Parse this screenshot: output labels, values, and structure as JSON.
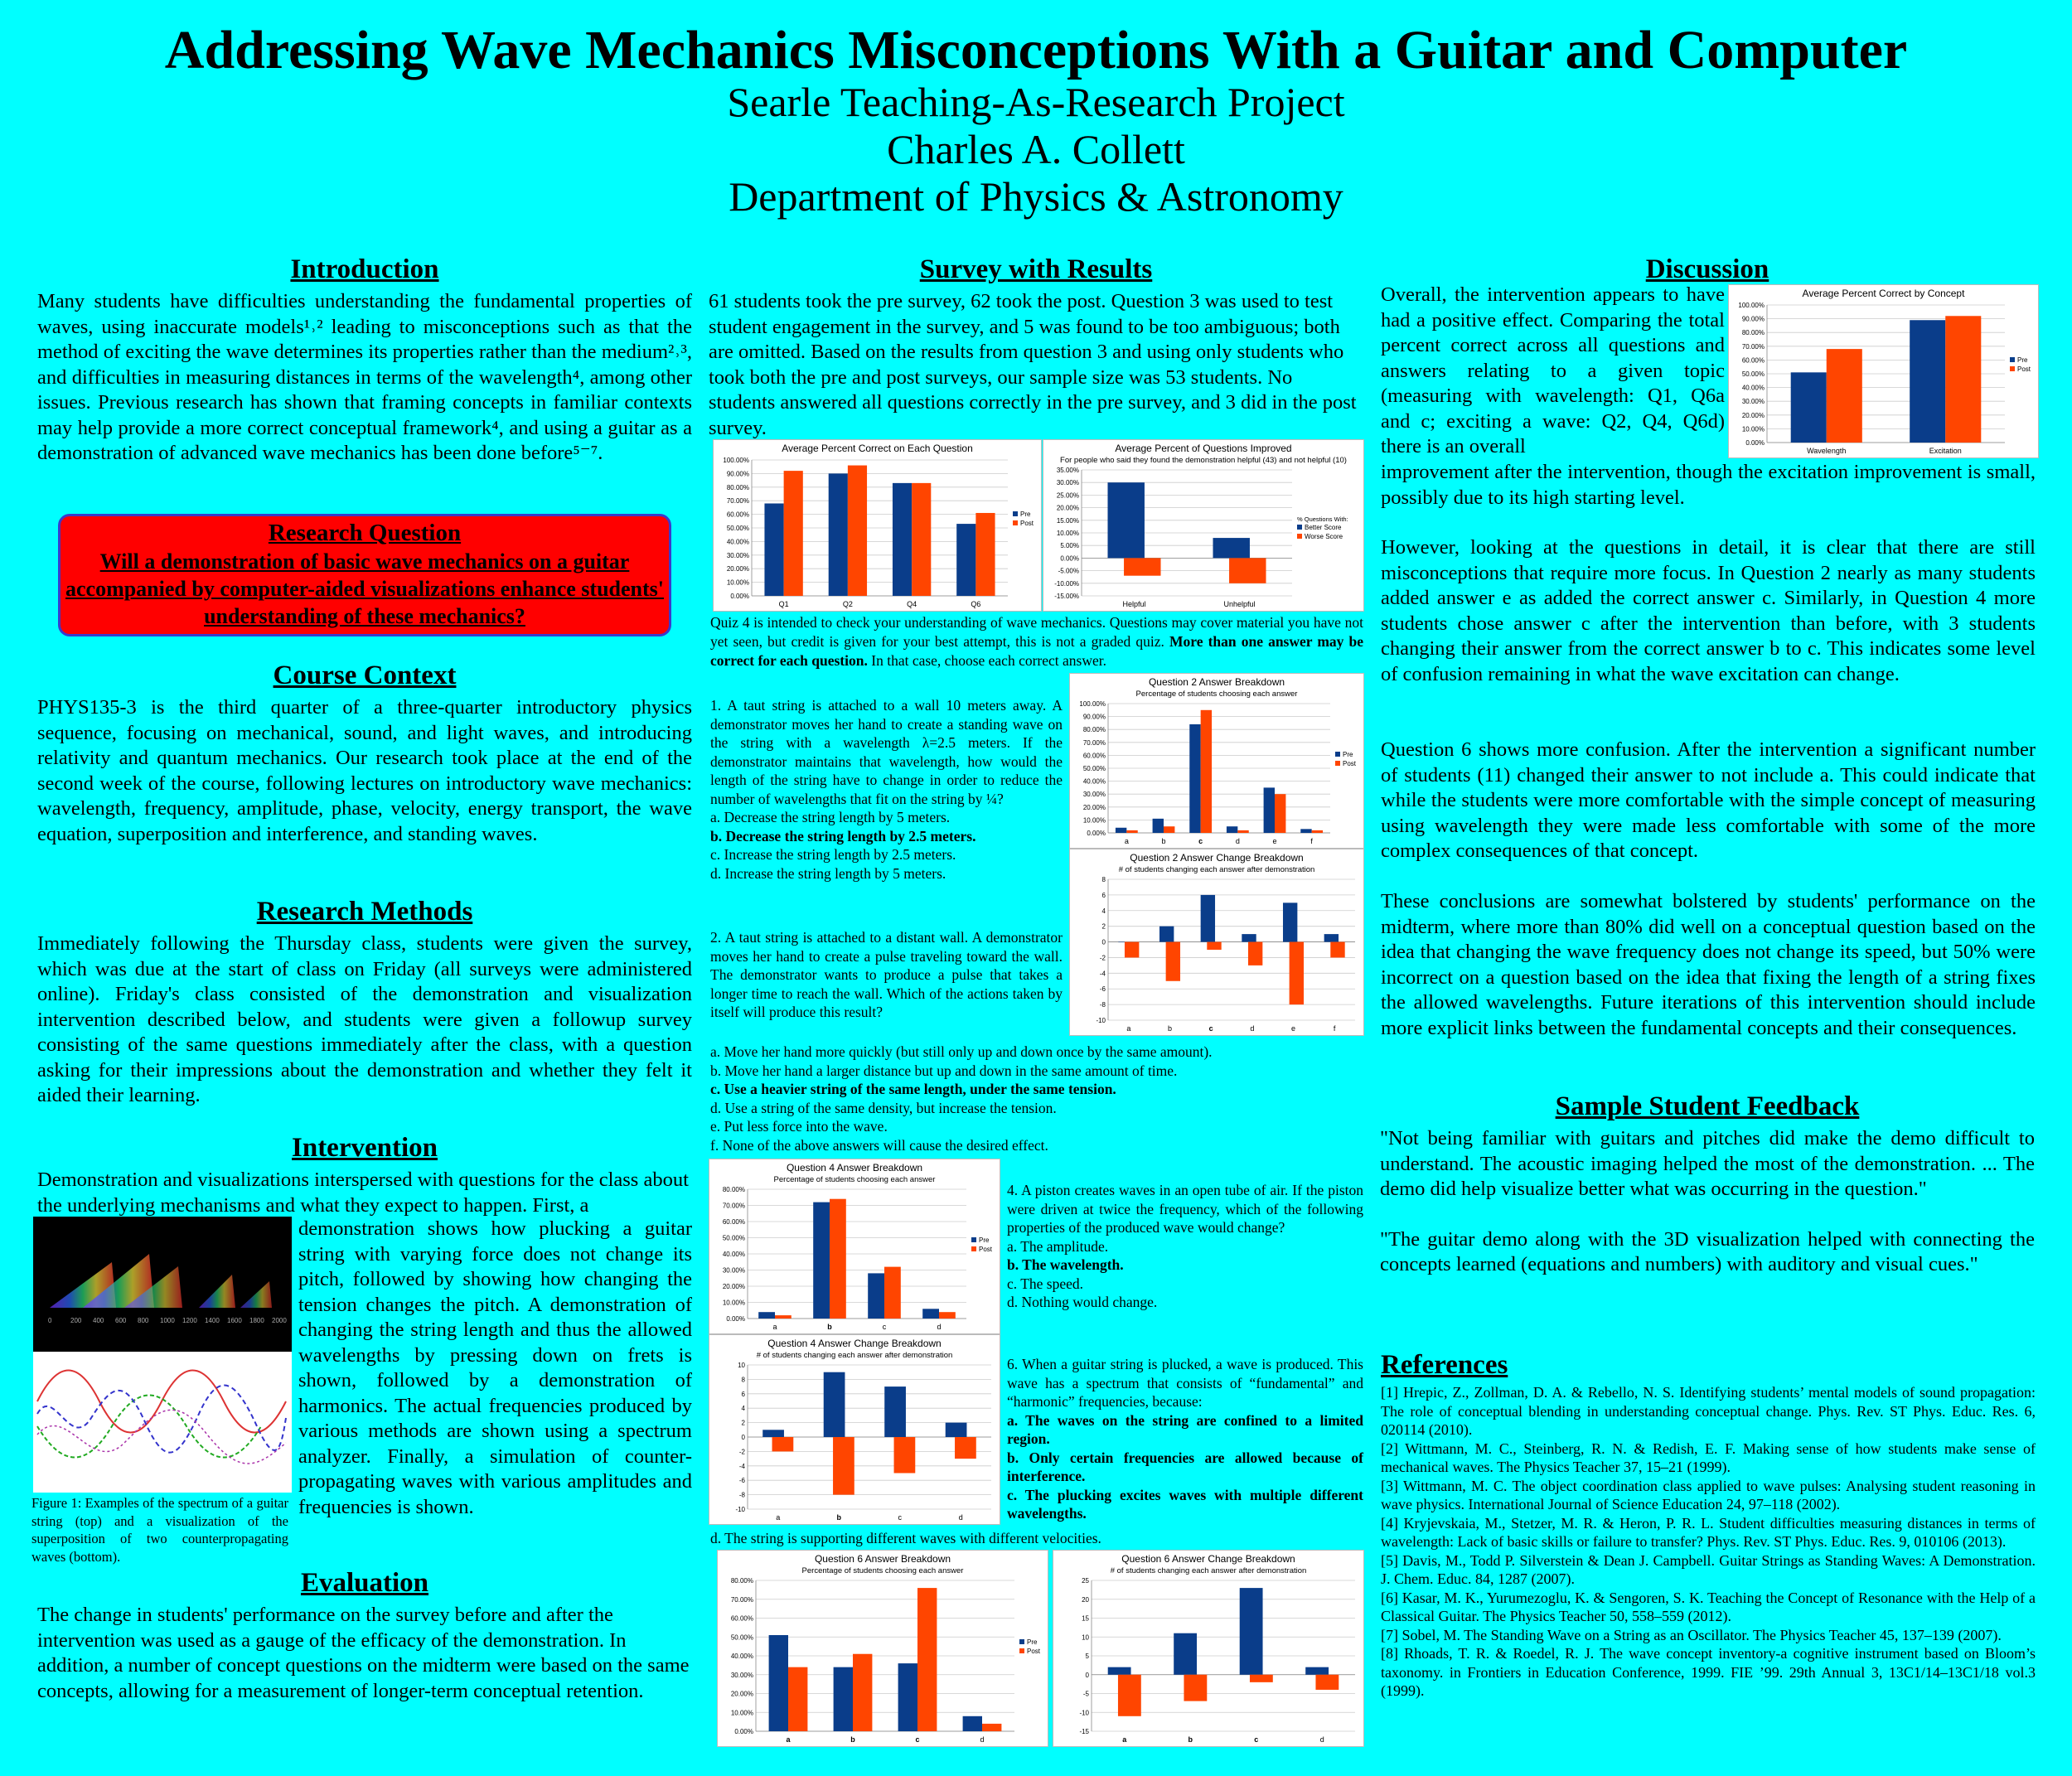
{
  "header": {
    "title": "Addressing Wave Mechanics Misconceptions With a Guitar and Computer",
    "lines": [
      "Searle Teaching-As-Research Project",
      "Charles A. Collett",
      "Department of Physics & Astronomy"
    ]
  },
  "intro": {
    "heading": "Introduction",
    "text": "Many students have difficulties understanding the fundamental properties of waves, using inaccurate models¹˒² leading to misconceptions such as that the method of exciting the wave determines its properties rather than the medium²˒³, and difficulties in measuring distances in terms of the wavelength⁴, among other issues. Previous research has shown that framing concepts in familiar contexts may help provide a more correct conceptual framework⁴, and using a guitar as a demonstration of advanced wave mechanics has been done before⁵⁻⁷."
  },
  "research_question": {
    "heading": "Research Question",
    "text": "Will a demonstration of basic wave mechanics on a guitar accompanied by computer-aided visualizations enhance students' understanding of these mechanics?"
  },
  "course_context": {
    "heading": "Course Context",
    "text": "PHYS135-3 is the third quarter of a three-quarter introductory physics sequence, focusing on mechanical, sound, and light waves, and introducing relativity and quantum mechanics. Our research took place at the end of the second week of the course, following lectures on introductory wave mechanics: wavelength, frequency, amplitude, phase, velocity, energy transport, the wave equation, superposition and interference, and standing waves."
  },
  "methods": {
    "heading": "Research Methods",
    "text": "Immediately following the Thursday class, students were given the survey, which was due at the start of class on Friday (all surveys were administered online). Friday's class consisted of the demonstration and visualization intervention described below, and students were given a followup survey consisting of the same questions immediately after the class, with a question asking for their impressions about the demonstration and whether they felt it aided their learning."
  },
  "intervention": {
    "heading": "Intervention",
    "text_top": "Demonstration and visualizations interspersed with questions for the class about the underlying mechanisms and what they expect to happen. First, a",
    "text_side": "demonstration shows how plucking a guitar string with varying force does not change its pitch, followed by showing how changing the tension changes the pitch. A demonstration of changing the string length and thus the allowed wavelengths by pressing down on frets is shown, followed by a demonstration of harmonics. The actual frequencies produced by various methods are shown using a spectrum analyzer. Finally, a simulation of counter-propagating waves with various amplitudes and frequencies is shown.",
    "figure_caption": "Figure 1: Examples of the spectrum of a guitar string (top) and a visualization of the superposition of two counterpropagating waves (bottom).",
    "spectrum_ticks": [
      "0",
      "200",
      "400",
      "600",
      "800",
      "1000",
      "1200",
      "1400",
      "1600",
      "1800",
      "2000"
    ]
  },
  "evaluation": {
    "heading": "Evaluation",
    "text": "The change in students' performance on the survey before and after the intervention was used as a gauge of the efficacy of the demonstration. In addition, a number of concept questions on the midterm were based on the same concepts, allowing for a measurement of longer-term conceptual retention."
  },
  "survey": {
    "heading": "Survey with Results",
    "text": "61 students took the pre survey, 62 took the post. Question 3 was used to test student engagement in the survey, and 5 was found to be too ambiguous; both are omitted. Based on the results from question 3 and using only students who took both the pre and post surveys, our sample size was 53 students. No students answered all questions correctly in the pre survey, and 3 did in the post survey.",
    "quiz_intro_normal": "Quiz 4 is intended to check your understanding of wave mechanics. Questions may cover material you have not yet seen, but credit is given for your best attempt, this is not a graded quiz.",
    "quiz_intro_bold": "More than one answer may be correct for each question.",
    "quiz_intro_end": "In that case, choose each correct answer.",
    "q1": {
      "stem": "1. A taut string is attached to a wall 10 meters away. A demonstrator moves her hand to create a standing wave on the string with a wavelength λ=2.5 meters. If the demonstrator maintains that wavelength, how would the length of the string have to change in order to reduce the number of wavelengths that fit on the string by ¼?",
      "options": [
        "a. Decrease the string length by 5 meters.",
        "b. Decrease the string length by 2.5 meters.",
        "c. Increase the string length by 2.5 meters.",
        "d. Increase the string length by 5 meters."
      ],
      "correct": [
        1
      ]
    },
    "q2": {
      "stem": "2. A taut string is attached to a distant wall. A demonstrator moves her hand to create a pulse traveling toward the wall. The demonstrator wants to produce a pulse that takes a longer time to reach the wall. Which of the actions taken by itself will produce this result?",
      "options": [
        "a. Move her hand more quickly (but still only up and down once by the same amount).",
        "b. Move her hand a larger distance but up and down in the same amount of time.",
        "c. Use a heavier string of the same length, under the same tension.",
        "d. Use a string of the same density, but increase the tension.",
        "e. Put less force into the wave.",
        "f. None of the above answers will cause the desired effect."
      ],
      "correct": [
        2
      ]
    },
    "q4": {
      "stem": "4. A piston creates waves in an open tube of air. If the piston were driven at twice the frequency, which of the following properties of the produced wave would change?",
      "options": [
        "a. The amplitude.",
        "b. The wavelength.",
        "c. The speed.",
        "d. Nothing would change."
      ],
      "correct": [
        1
      ]
    },
    "q6": {
      "stem": "6. When a guitar string is plucked, a wave is produced. This wave has a spectrum that consists of “fundamental” and “harmonic” frequencies, because:",
      "options": [
        "a. The waves on the string are confined to a limited region.",
        "b. Only certain frequencies are allowed because of interference.",
        "c. The plucking excites waves with multiple different wavelengths."
      ],
      "option_d": "d. The string is supporting different waves with different velocities.",
      "correct": [
        0,
        1,
        2
      ]
    }
  },
  "discussion": {
    "heading": "Discussion",
    "p1_side": "Overall, the intervention appears to have had a positive effect. Comparing the total percent correct across all questions and answers relating to a given topic (measuring with wavelength: Q1, Q6a and c; exciting a wave: Q2, Q4, Q6d) there is an overall",
    "p1_full": "improvement after the intervention, though the excitation improvement is small, possibly due to its high starting level.",
    "p2": "However, looking at the questions in detail, it is clear that there are still misconceptions that require more focus. In Question 2 nearly as many students added answer e as added the correct answer c. Similarly, in Question 4 more students chose answer c after the intervention than before, with 3 students changing their answer from the correct answer b to c. This indicates some level of confusion remaining in what the wave excitation can change.",
    "p3": "Question 6 shows more confusion. After the intervention a significant number of students (11) changed their answer to not include a. This could indicate that while the students were more comfortable with the simple concept of measuring using wavelength they were made less comfortable with some of the more complex consequences of that concept.",
    "p4": "These conclusions are somewhat bolstered by students' performance on the midterm, where more than 80% did well on a conceptual question based on the idea that changing the wave frequency does not change its speed, but 50% were incorrect on a question based on the idea that fixing the length of a string fixes the allowed wavelengths. Future iterations of this intervention should include more explicit links between the fundamental concepts and their consequences."
  },
  "feedback": {
    "heading": "Sample Student Feedback",
    "quotes": [
      "\"Not being familiar with guitars and pitches did make the demo difficult to understand. The acoustic imaging helped the most of the demonstration. ... The demo did help visualize better what was occurring in the question.\"",
      "\"The guitar demo along with the 3D visualization helped with connecting the concepts learned (equations and numbers) with auditory and visual cues.\""
    ]
  },
  "references": {
    "heading": "References",
    "items": [
      "[1] Hrepic, Z., Zollman, D. A. & Rebello, N. S. Identifying students’ mental models of sound propagation: The role of conceptual blending in understanding conceptual change. Phys. Rev. ST Phys. Educ. Res. 6, 020114 (2010).",
      "[2] Wittmann, M. C., Steinberg, R. N. & Redish, E. F. Making sense of how students make sense of mechanical waves. The Physics Teacher 37, 15–21 (1999).",
      "[3] Wittmann, M. C. The object coordination class applied to wave pulses: Analysing student reasoning in wave physics. International Journal of Science Education 24, 97–118 (2002).",
      "[4] Kryjevskaia, M., Stetzer, M. R. & Heron, P. R. L. Student difficulties measuring distances in terms of wavelength: Lack of basic skills or failure to transfer? Phys. Rev. ST Phys. Educ. Res. 9, 010106 (2013).",
      "[5] Davis, M., Todd P. Silverstein & Dean J. Campbell. Guitar Strings as Standing Waves: A Demonstration. J. Chem. Educ. 84, 1287 (2007).",
      "[6] Kasar, M. K., Yurumezoglu, K. & Sengoren, S. K. Teaching the Concept of Resonance with the Help of a Classical Guitar. The Physics Teacher 50, 558–559 (2012).",
      "[7] Sobel, M. The Standing Wave on a String as an Oscillator. The Physics Teacher 45, 137–139 (2007).",
      "[8] Rhoads, T. R. & Roedel, R. J. The wave concept inventory-a cognitive instrument based on Bloom’s taxonomy. in Frontiers in Education Conference, 1999. FIE ’99. 29th Annual 3, 13C1/14–13C1/18 vol.3 (1999)."
    ]
  },
  "colors": {
    "background": "#00ffff",
    "pre": "#0a3d8a",
    "post": "#ff4500",
    "box": "#ff0000"
  },
  "chart_data": [
    {
      "id": "avg_correct",
      "type": "bar",
      "title": "Average Percent Correct on Each Question",
      "categories": [
        "Q1",
        "Q2",
        "Q4",
        "Q6"
      ],
      "series": [
        {
          "name": "Pre",
          "values": [
            68,
            90,
            83,
            53
          ]
        },
        {
          "name": "Post",
          "values": [
            92,
            96,
            83,
            61
          ]
        }
      ],
      "ylim": [
        0,
        100
      ],
      "yticks": [
        "0.00%",
        "10.00%",
        "20.00%",
        "30.00%",
        "40.00%",
        "50.00%",
        "60.00%",
        "70.00%",
        "80.00%",
        "90.00%",
        "100.00%"
      ],
      "legend": "right",
      "grid": true
    },
    {
      "id": "avg_improved",
      "type": "bar",
      "title": "Average Percent of Questions Improved",
      "subtitle": "For people who said they found the demonstration helpful (43) and not helpful (10)",
      "categories": [
        "Helpful",
        "Unhelpful"
      ],
      "series": [
        {
          "name": "Better Score",
          "values": [
            30,
            8
          ]
        },
        {
          "name": "Worse Score",
          "values": [
            -7,
            -10
          ]
        }
      ],
      "legend_title": "% Questions With:",
      "ylim": [
        -15,
        35
      ],
      "yticks": [
        "-15.00%",
        "-10.00%",
        "-5.00%",
        "0.00%",
        "5.00%",
        "10.00%",
        "15.00%",
        "20.00%",
        "25.00%",
        "30.00%",
        "35.00%"
      ],
      "legend": "right",
      "grid": true
    },
    {
      "id": "q2_breakdown",
      "type": "bar",
      "title": "Question 2 Answer Breakdown",
      "subtitle": "Percentage of students choosing each answer",
      "categories": [
        "a",
        "b",
        "c",
        "d",
        "e",
        "f"
      ],
      "bold_categories": [
        "c"
      ],
      "series": [
        {
          "name": "Pre",
          "values": [
            4,
            11,
            84,
            5,
            35,
            3
          ]
        },
        {
          "name": "Post",
          "values": [
            2,
            5,
            95,
            2,
            30,
            2
          ]
        }
      ],
      "ylim": [
        0,
        100
      ],
      "yticks": [
        "0.00%",
        "10.00%",
        "20.00%",
        "30.00%",
        "40.00%",
        "50.00%",
        "60.00%",
        "70.00%",
        "80.00%",
        "90.00%",
        "100.00%"
      ],
      "legend": "right",
      "grid": true
    },
    {
      "id": "q2_change",
      "type": "bar",
      "title": "Question 2 Answer Change Breakdown",
      "subtitle": "# of students changing each answer after demonstration",
      "categories": [
        "a",
        "b",
        "c",
        "d",
        "e",
        "f"
      ],
      "bold_categories": [
        "c"
      ],
      "series": [
        {
          "values": [
            0,
            2,
            6,
            1,
            5,
            1
          ]
        },
        {
          "values": [
            -2,
            -5,
            -1,
            -3,
            -8,
            -2
          ]
        }
      ],
      "ylim": [
        -10,
        8
      ],
      "yticks": [
        "-10",
        "-8",
        "-6",
        "-4",
        "-2",
        "0",
        "2",
        "4",
        "6",
        "8"
      ],
      "grid": true
    },
    {
      "id": "q4_breakdown",
      "type": "bar",
      "title": "Question 4 Answer Breakdown",
      "subtitle": "Percentage of students choosing each answer",
      "categories": [
        "a",
        "b",
        "c",
        "d"
      ],
      "bold_categories": [
        "b"
      ],
      "series": [
        {
          "name": "Pre",
          "values": [
            4,
            72,
            28,
            6
          ]
        },
        {
          "name": "Post",
          "values": [
            2,
            74,
            32,
            4
          ]
        }
      ],
      "ylim": [
        0,
        80
      ],
      "yticks": [
        "0.00%",
        "10.00%",
        "20.00%",
        "30.00%",
        "40.00%",
        "50.00%",
        "60.00%",
        "70.00%",
        "80.00%"
      ],
      "legend": "right",
      "grid": true
    },
    {
      "id": "q4_change",
      "type": "bar",
      "title": "Question 4 Answer Change Breakdown",
      "subtitle": "# of students changing each answer after demonstration",
      "categories": [
        "a",
        "b",
        "c",
        "d"
      ],
      "bold_categories": [
        "b"
      ],
      "series": [
        {
          "values": [
            1,
            9,
            7,
            2
          ]
        },
        {
          "values": [
            -2,
            -8,
            -5,
            -3
          ]
        }
      ],
      "ylim": [
        -10,
        10
      ],
      "yticks": [
        "-10",
        "-8",
        "-6",
        "-4",
        "-2",
        "0",
        "2",
        "4",
        "6",
        "8",
        "10"
      ],
      "grid": true
    },
    {
      "id": "q6_breakdown",
      "type": "bar",
      "title": "Question 6 Answer Breakdown",
      "subtitle": "Percentage of students choosing each answer",
      "categories": [
        "a",
        "b",
        "c",
        "d"
      ],
      "bold_categories": [
        "a",
        "b",
        "c"
      ],
      "series": [
        {
          "name": "Pre",
          "values": [
            51,
            34,
            36,
            8
          ]
        },
        {
          "name": "Post",
          "values": [
            34,
            41,
            76,
            4
          ]
        }
      ],
      "ylim": [
        0,
        80
      ],
      "yticks": [
        "0.00%",
        "10.00%",
        "20.00%",
        "30.00%",
        "40.00%",
        "50.00%",
        "60.00%",
        "70.00%",
        "80.00%"
      ],
      "legend": "right",
      "grid": true
    },
    {
      "id": "q6_change",
      "type": "bar",
      "title": "Question 6 Answer Change Breakdown",
      "subtitle": "# of students changing each answer after demonstration",
      "categories": [
        "a",
        "b",
        "c",
        "d"
      ],
      "bold_categories": [
        "a",
        "b",
        "c"
      ],
      "series": [
        {
          "values": [
            2,
            11,
            23,
            2
          ]
        },
        {
          "values": [
            -11,
            -7,
            -2,
            -4
          ]
        }
      ],
      "ylim": [
        -15,
        25
      ],
      "yticks": [
        "-15",
        "-10",
        "-5",
        "0",
        "5",
        "10",
        "15",
        "20",
        "25"
      ],
      "grid": true
    },
    {
      "id": "concept",
      "type": "bar",
      "title": "Average Percent Correct by Concept",
      "categories": [
        "Wavelength",
        "Excitation"
      ],
      "series": [
        {
          "name": "Pre",
          "values": [
            51,
            89
          ]
        },
        {
          "name": "Post",
          "values": [
            68,
            92
          ]
        }
      ],
      "ylim": [
        0,
        100
      ],
      "yticks": [
        "0.00%",
        "10.00%",
        "20.00%",
        "30.00%",
        "40.00%",
        "50.00%",
        "60.00%",
        "70.00%",
        "80.00%",
        "90.00%",
        "100.00%"
      ],
      "legend": "right",
      "grid": true
    }
  ]
}
